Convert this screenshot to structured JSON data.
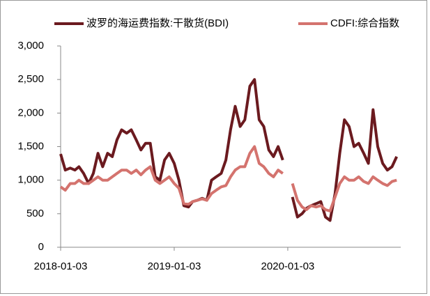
{
  "chart_data": {
    "type": "line",
    "x": [
      "2018-01-03",
      "2018-01-18",
      "2018-02-03",
      "2018-02-18",
      "2018-03-03",
      "2018-03-18",
      "2018-04-03",
      "2018-04-18",
      "2018-05-03",
      "2018-05-18",
      "2018-06-03",
      "2018-06-18",
      "2018-07-03",
      "2018-07-18",
      "2018-08-03",
      "2018-08-18",
      "2018-09-03",
      "2018-09-18",
      "2018-10-03",
      "2018-10-18",
      "2018-11-03",
      "2018-11-18",
      "2018-12-03",
      "2018-12-18",
      "2019-01-03",
      "2019-01-18",
      "2019-02-03",
      "2019-02-18",
      "2019-03-03",
      "2019-03-18",
      "2019-04-03",
      "2019-04-18",
      "2019-05-03",
      "2019-05-18",
      "2019-06-03",
      "2019-06-18",
      "2019-07-03",
      "2019-07-18",
      "2019-08-03",
      "2019-08-18",
      "2019-09-03",
      "2019-09-18",
      "2019-10-03",
      "2019-10-18",
      "2019-11-03",
      "2019-11-18",
      "2019-12-03",
      "2019-12-18",
      "2020-01-03",
      "2020-01-18",
      "2020-02-03",
      "2020-02-18",
      "2020-03-03",
      "2020-03-18",
      "2020-04-03",
      "2020-04-18",
      "2020-05-03",
      "2020-05-18",
      "2020-06-03",
      "2020-06-18",
      "2020-07-03",
      "2020-07-18",
      "2020-08-03",
      "2020-08-18",
      "2020-09-03",
      "2020-09-18",
      "2020-10-03",
      "2020-10-18",
      "2020-11-03",
      "2020-11-18",
      "2020-12-03",
      "2020-12-18"
    ],
    "series": [
      {
        "name": "波罗的海运费指数:干散货(BDI)",
        "color": "#6b1a1f",
        "values": [
          1390,
          1150,
          1180,
          1150,
          1200,
          1100,
          950,
          1100,
          1400,
          1200,
          1400,
          1350,
          1600,
          1750,
          1700,
          1750,
          1600,
          1450,
          1550,
          1550,
          1050,
          1000,
          1300,
          1400,
          1250,
          1000,
          620,
          600,
          680,
          700,
          730,
          700,
          1000,
          1050,
          1100,
          1300,
          1750,
          2100,
          1800,
          1900,
          2400,
          2500,
          1900,
          1800,
          1450,
          1350,
          1500,
          1300,
          null,
          750,
          450,
          500,
          580,
          620,
          650,
          680,
          450,
          400,
          800,
          1400,
          1900,
          1800,
          1500,
          1550,
          1400,
          1250,
          2050,
          1500,
          1250,
          1150,
          1200,
          1350
        ]
      },
      {
        "name": "CDFI:综合指数",
        "color": "#d4736e",
        "values": [
          900,
          850,
          950,
          950,
          1000,
          950,
          950,
          1000,
          1050,
          1000,
          1000,
          1050,
          1100,
          1150,
          1150,
          1100,
          1150,
          1080,
          1150,
          1200,
          1000,
          950,
          1000,
          1050,
          950,
          880,
          650,
          640,
          680,
          700,
          720,
          700,
          800,
          850,
          900,
          920,
          1050,
          1150,
          1200,
          1200,
          1400,
          1500,
          1250,
          1200,
          1100,
          1050,
          1150,
          1100,
          null,
          950,
          700,
          600,
          560,
          620,
          600,
          620,
          560,
          540,
          750,
          950,
          1050,
          1000,
          1000,
          1050,
          980,
          950,
          1050,
          1000,
          950,
          920,
          980,
          1000
        ]
      }
    ],
    "xlim": [
      "2018-01-03",
      "2020-12-31"
    ],
    "xticks": [
      "2018-01-03",
      "2019-01-03",
      "2020-01-03"
    ],
    "ylim": [
      0,
      3000
    ],
    "yticks": [
      0,
      500,
      {
        "value": 1000,
        "label": "1,000"
      },
      {
        "value": 1500,
        "label": "1,500"
      },
      {
        "value": 2000,
        "label": "2,000"
      },
      {
        "value": 2500,
        "label": "2,500"
      },
      {
        "value": 3000,
        "label": "3,000"
      }
    ],
    "grid": false,
    "legend": "top"
  }
}
